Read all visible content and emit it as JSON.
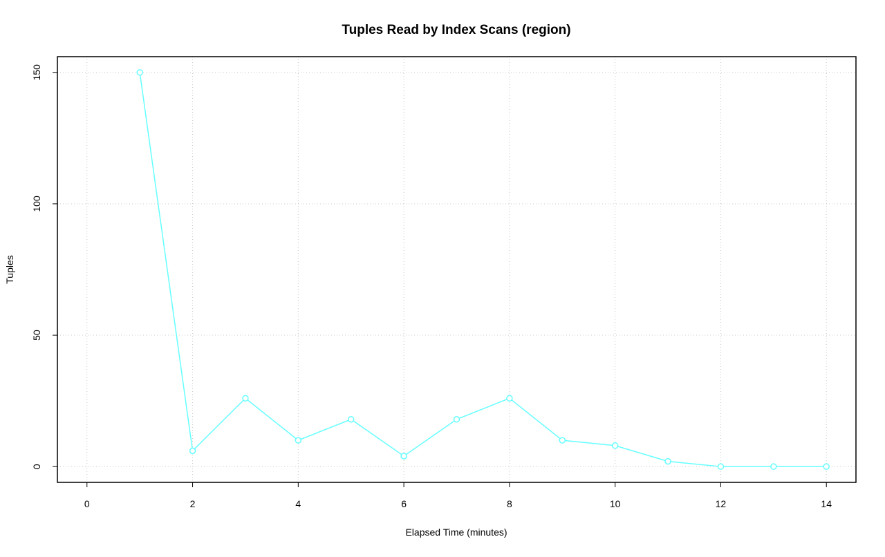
{
  "chart_data": {
    "type": "line",
    "title": "Tuples Read by Index Scans (region)",
    "x_label": "Elapsed Time (minutes)",
    "y_label": "Tuples",
    "x": [
      1,
      2,
      3,
      4,
      5,
      6,
      7,
      8,
      9,
      10,
      11,
      12,
      13,
      14
    ],
    "series": [
      {
        "color": "#66ffff",
        "values": [
          150,
          6,
          26,
          10,
          18,
          4,
          18,
          26,
          10,
          8,
          2,
          0,
          0,
          0
        ]
      }
    ],
    "xlim": [
      -0.56,
      14.56
    ],
    "xticks": [
      0,
      2,
      4,
      6,
      8,
      10,
      12,
      14
    ],
    "ylim": [
      -6,
      156
    ],
    "yticks": [
      0,
      50,
      100,
      150
    ],
    "grid": true
  }
}
